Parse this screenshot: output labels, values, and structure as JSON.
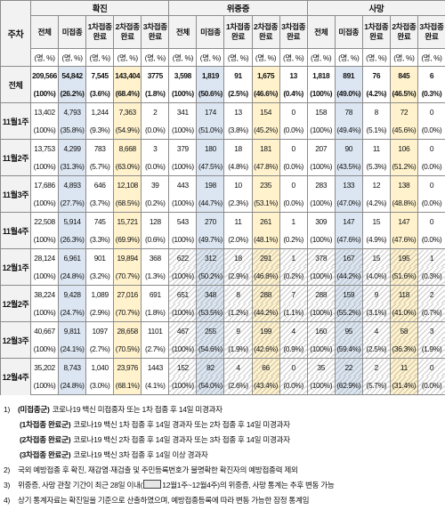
{
  "table": {
    "corner": "주차",
    "groups": [
      "확진",
      "위중증",
      "사망"
    ],
    "subheaders": [
      "전체",
      "미접종",
      "1차접종 완료",
      "2차접종 완료",
      "3차접종 완료"
    ],
    "unit": "(명, %)",
    "rows": [
      {
        "label": "전체",
        "counts": [
          "209,566",
          "54,842",
          "7,545",
          "143,404",
          "3775",
          "3,598",
          "1,819",
          "91",
          "1,675",
          "13",
          "1,818",
          "891",
          "76",
          "845",
          "6"
        ],
        "percents": [
          "(100%)",
          "(26.2%)",
          "(3.6%)",
          "(68.4%)",
          "(1.8%)",
          "(100%)",
          "(50.6%)",
          "(2.5%)",
          "(46.6%)",
          "(0.4%)",
          "(100%)",
          "(49.0%)",
          "(4.2%)",
          "(46.5%)",
          "(0.3%)"
        ]
      },
      {
        "label": "11월1주",
        "counts": [
          "13,402",
          "4,793",
          "1,244",
          "7,363",
          "2",
          "341",
          "174",
          "13",
          "154",
          "0",
          "158",
          "78",
          "8",
          "72",
          "0"
        ],
        "percents": [
          "(100%)",
          "(35.8%)",
          "(9.3%)",
          "(54.9%)",
          "(0.0%)",
          "(100%)",
          "(51.0%)",
          "(3.8%)",
          "(45.2%)",
          "(0.0%)",
          "(100%)",
          "(49.4%)",
          "(5.1%)",
          "(45.6%)",
          "(0.0%)"
        ]
      },
      {
        "label": "11월2주",
        "counts": [
          "13,753",
          "4,299",
          "783",
          "8,668",
          "3",
          "379",
          "180",
          "18",
          "181",
          "0",
          "207",
          "90",
          "11",
          "106",
          "0"
        ],
        "percents": [
          "(100%)",
          "(31.3%)",
          "(5.7%)",
          "(63.0%)",
          "(0.0%)",
          "(100%)",
          "(47.5%)",
          "(4.8%)",
          "(47.8%)",
          "(0.0%)",
          "(100%)",
          "(43.5%)",
          "(5.3%)",
          "(51.2%)",
          "(0.0%)"
        ]
      },
      {
        "label": "11월3주",
        "counts": [
          "17,686",
          "4,893",
          "646",
          "12,108",
          "39",
          "443",
          "198",
          "10",
          "235",
          "0",
          "283",
          "133",
          "12",
          "138",
          "0"
        ],
        "percents": [
          "(100%)",
          "(27.7%)",
          "(3.7%)",
          "(68.5%)",
          "(0.2%)",
          "(100%)",
          "(44.7%)",
          "(2.3%)",
          "(53.1%)",
          "(0.0%)",
          "(100%)",
          "(47.0%)",
          "(4.2%)",
          "(48.8%)",
          "(0.0%)"
        ]
      },
      {
        "label": "11월4주",
        "counts": [
          "22,508",
          "5,914",
          "745",
          "15,721",
          "128",
          "543",
          "270",
          "11",
          "261",
          "1",
          "309",
          "147",
          "15",
          "147",
          "0"
        ],
        "percents": [
          "(100%)",
          "(26.3%)",
          "(3.3%)",
          "(69.9%)",
          "(0.6%)",
          "(100%)",
          "(49.7%)",
          "(2.0%)",
          "(48.1%)",
          "(0.2%)",
          "(100%)",
          "(47.6%)",
          "(4.9%)",
          "(47.6%)",
          "(0.0%)"
        ]
      },
      {
        "label": "12월1주",
        "counts": [
          "28,124",
          "6,961",
          "901",
          "19,894",
          "368",
          "622",
          "312",
          "18",
          "291",
          "1",
          "378",
          "167",
          "15",
          "195",
          "1"
        ],
        "percents": [
          "(100%)",
          "(24.8%)",
          "(3.2%)",
          "(70.7%)",
          "(1.3%)",
          "(100%)",
          "(50.2%)",
          "(2.9%)",
          "(46.8%)",
          "(0.2%)",
          "(100%)",
          "(44.2%)",
          "(4.0%)",
          "(51.6%)",
          "(0.3%)"
        ]
      },
      {
        "label": "12월2주",
        "counts": [
          "38,224",
          "9,428",
          "1,089",
          "27,016",
          "691",
          "651",
          "348",
          "8",
          "288",
          "7",
          "288",
          "159",
          "9",
          "118",
          "2"
        ],
        "percents": [
          "(100%)",
          "(24.7%)",
          "(2.9%)",
          "(70.7%)",
          "(1.8%)",
          "(100%)",
          "(53.5%)",
          "(1.2%)",
          "(44.2%)",
          "(1.1%)",
          "(100%)",
          "(55.2%)",
          "(3.1%)",
          "(41.0%)",
          "(0.7%)"
        ]
      },
      {
        "label": "12월3주",
        "counts": [
          "40,667",
          "9,811",
          "1097",
          "28,658",
          "1101",
          "467",
          "255",
          "9",
          "199",
          "4",
          "160",
          "95",
          "4",
          "58",
          "3"
        ],
        "percents": [
          "(100%)",
          "(24.1%)",
          "(2.7%)",
          "(70.5%)",
          "(2.7%)",
          "(100%)",
          "(54.6%)",
          "(1.9%)",
          "(42.6%)",
          "(0.9%)",
          "(100%)",
          "(59.4%)",
          "(2.5%)",
          "(36.3%)",
          "(1.9%)"
        ]
      },
      {
        "label": "12월4주",
        "counts": [
          "35,202",
          "8,743",
          "1,040",
          "23,976",
          "1443",
          "152",
          "82",
          "4",
          "66",
          "0",
          "35",
          "22",
          "2",
          "11",
          "0"
        ],
        "percents": [
          "(100%)",
          "(24.8%)",
          "(3.0%)",
          "(68.1%)",
          "(4.1%)",
          "(100%)",
          "(54.0%)",
          "(2.6%)",
          "(43.4%)",
          "(0.0%)",
          "(100%)",
          "(62.9%)",
          "(5.7%)",
          "(31.4%)",
          "(0.0%)"
        ]
      }
    ]
  },
  "notes": {
    "note1": {
      "marker": "1)",
      "items": [
        {
          "term": "(미접종군)",
          "text": "코로나19 백신 미접종자 또는 1차 접종 후 14일 미경과자"
        },
        {
          "term": "(1차접종 완료군)",
          "text": "코로나19 백신 1차 접종 후 14일 경과자 또는 2차 접종 후 14일 미경과자"
        },
        {
          "term": "(2차접종 완료군)",
          "text": "코로나19 백신 2차 접종 후 14일 경과자 또는 3차 접종 후 14일 미경과자"
        },
        {
          "term": "(3차접종 완료군)",
          "text": "코로나19 백신 3차 접종 후 14일 이상 경과자"
        }
      ]
    },
    "note2": {
      "marker": "2)",
      "text": "국외 예방접종 후 확진, 재감염·재검출 및 주민등록번호가 불명확한 확진자의 예방접종력 제외"
    },
    "note3": {
      "marker": "3)",
      "text_before": "위중증, 사망 관찰 기간이 최근 28일 이내(",
      "text_after": "12월1주~12월4주)의 위중증, 사망 통계는 추후 변동 가능"
    },
    "note4": {
      "marker": "4)",
      "text": "상기 통계자료는 확진일을 기준으로 산출하였으며, 예방접종등록에 따라 변동 가능한 잠정 통계임"
    }
  }
}
